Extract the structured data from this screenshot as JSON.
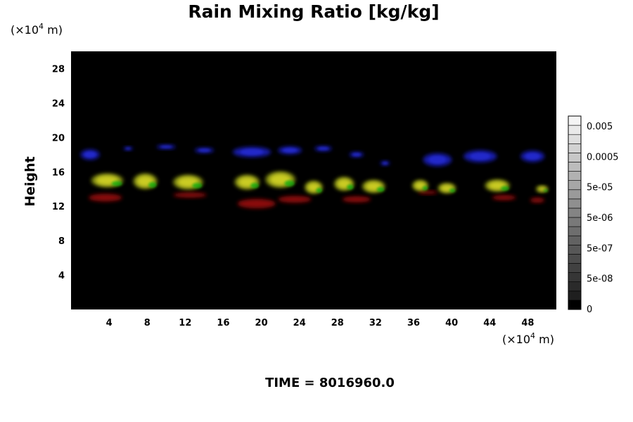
{
  "chart_data": {
    "type": "heatmap",
    "title": "Rain Mixing Ratio [kg/kg]",
    "ylabel": "Height",
    "x_unit_prefix": "(×10",
    "x_unit_exp": "4",
    "x_unit_suffix": " m)",
    "y_unit_prefix": "(×10",
    "y_unit_exp": "4",
    "y_unit_suffix": " m)",
    "xlim": [
      0,
      51
    ],
    "ylim": [
      0,
      30
    ],
    "x_ticks": [
      4,
      8,
      12,
      16,
      20,
      24,
      28,
      32,
      36,
      40,
      44,
      48
    ],
    "y_ticks": [
      4,
      8,
      12,
      16,
      20,
      24,
      28
    ],
    "colorbar": {
      "labels": [
        "0.005",
        "0.0005",
        "5e-05",
        "5e-06",
        "5e-07",
        "5e-08",
        "0"
      ],
      "levels": 21,
      "colors": {
        "dark": "#000000",
        "light": "#f4f4f4"
      }
    },
    "features": {
      "upper_band_blue": {
        "color": "#1c22c8",
        "y_center": 17.8,
        "blobs": [
          {
            "x": 2.0,
            "y": 18.0,
            "w": 2.0,
            "h": 1.2
          },
          {
            "x": 6.0,
            "y": 18.7,
            "w": 1.0,
            "h": 0.4
          },
          {
            "x": 10.0,
            "y": 18.9,
            "w": 2.0,
            "h": 0.5
          },
          {
            "x": 14.0,
            "y": 18.5,
            "w": 2.0,
            "h": 0.6
          },
          {
            "x": 19.0,
            "y": 18.3,
            "w": 4.0,
            "h": 1.2
          },
          {
            "x": 23.0,
            "y": 18.5,
            "w": 2.5,
            "h": 0.9
          },
          {
            "x": 26.5,
            "y": 18.7,
            "w": 1.8,
            "h": 0.6
          },
          {
            "x": 30.0,
            "y": 18.0,
            "w": 1.5,
            "h": 0.6
          },
          {
            "x": 33.0,
            "y": 17.0,
            "w": 1.0,
            "h": 0.5
          },
          {
            "x": 38.5,
            "y": 17.4,
            "w": 3.0,
            "h": 1.5
          },
          {
            "x": 43.0,
            "y": 17.8,
            "w": 3.5,
            "h": 1.4
          },
          {
            "x": 48.5,
            "y": 17.8,
            "w": 2.5,
            "h": 1.3
          }
        ]
      },
      "mid_band_yellow_green": {
        "colors": {
          "yellow": "#d8d828",
          "olive": "#8e9a12",
          "green": "#10b010"
        },
        "blobs": [
          {
            "x": 3.8,
            "y": 15.0,
            "w": 3.2,
            "h": 1.5
          },
          {
            "x": 7.8,
            "y": 14.9,
            "w": 2.4,
            "h": 1.7
          },
          {
            "x": 12.3,
            "y": 14.8,
            "w": 3.0,
            "h": 1.6
          },
          {
            "x": 18.5,
            "y": 14.8,
            "w": 2.5,
            "h": 1.6
          },
          {
            "x": 22.0,
            "y": 15.1,
            "w": 3.0,
            "h": 1.8
          },
          {
            "x": 25.5,
            "y": 14.2,
            "w": 1.8,
            "h": 1.4
          },
          {
            "x": 28.7,
            "y": 14.6,
            "w": 2.0,
            "h": 1.5
          },
          {
            "x": 31.8,
            "y": 14.3,
            "w": 2.3,
            "h": 1.4
          },
          {
            "x": 36.7,
            "y": 14.4,
            "w": 1.6,
            "h": 1.2
          },
          {
            "x": 39.5,
            "y": 14.1,
            "w": 1.8,
            "h": 1.1
          },
          {
            "x": 44.8,
            "y": 14.4,
            "w": 2.5,
            "h": 1.3
          },
          {
            "x": 49.5,
            "y": 14.0,
            "w": 1.2,
            "h": 0.7
          }
        ]
      },
      "lower_band_red": {
        "color": "#9a1010",
        "y_center": 12.8,
        "blobs": [
          {
            "x": 3.6,
            "y": 13.0,
            "w": 3.5,
            "h": 0.9
          },
          {
            "x": 12.5,
            "y": 13.3,
            "w": 3.5,
            "h": 0.6
          },
          {
            "x": 19.5,
            "y": 12.3,
            "w": 4.0,
            "h": 1.1
          },
          {
            "x": 23.5,
            "y": 12.8,
            "w": 3.5,
            "h": 0.8
          },
          {
            "x": 30.0,
            "y": 12.8,
            "w": 3.0,
            "h": 0.7
          },
          {
            "x": 37.5,
            "y": 13.6,
            "w": 2.0,
            "h": 0.4
          },
          {
            "x": 45.5,
            "y": 13.0,
            "w": 2.5,
            "h": 0.6
          },
          {
            "x": 49.0,
            "y": 12.7,
            "w": 1.5,
            "h": 0.6
          }
        ]
      }
    }
  },
  "footer": {
    "time_label": "TIME = 8016960.0"
  }
}
